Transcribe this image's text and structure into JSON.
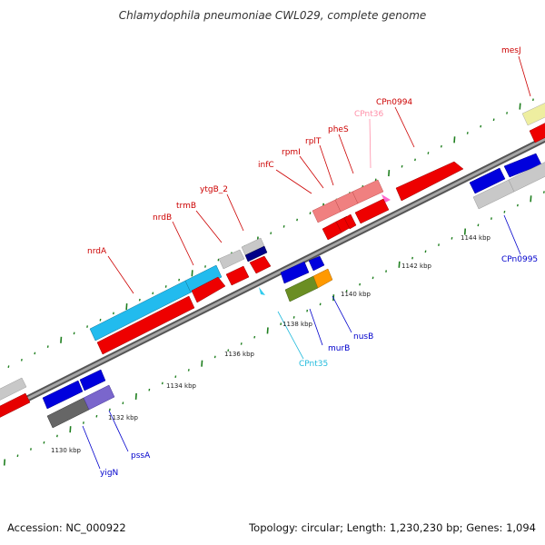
{
  "title": "Chlamydophila pneumoniae CWL029, complete genome",
  "footer": {
    "accession": "Accession: NC_000922",
    "summary": "Topology: circular; Length: 1,230,230 bp; Genes: 1,094"
  },
  "colors": {
    "backbone": "#7f7f7f",
    "forward_strand": "#ff0000",
    "reverse_strand": "#0000ee",
    "rna": "#ff8c8c",
    "ticks": "#1f7f1f"
  },
  "scale_labels": [
    "1130 kbp",
    "1132 kbp",
    "1134 kbp",
    "1136 kbp",
    "1138 kbp",
    "1140 kbp",
    "1142 kbp",
    "1144 kbp"
  ],
  "gene_labels": [
    {
      "text": "mesJ",
      "color": "#cc0000"
    },
    {
      "text": "CPn0994",
      "color": "#cc0000"
    },
    {
      "text": "CPnt36",
      "color": "#ff8fa8"
    },
    {
      "text": "pheS",
      "color": "#cc0000"
    },
    {
      "text": "rplT",
      "color": "#cc0000"
    },
    {
      "text": "rpmI",
      "color": "#cc0000"
    },
    {
      "text": "infC",
      "color": "#cc0000"
    },
    {
      "text": "ytgB_2",
      "color": "#cc0000"
    },
    {
      "text": "trmB",
      "color": "#cc0000"
    },
    {
      "text": "nrdB",
      "color": "#cc0000"
    },
    {
      "text": "nrdA",
      "color": "#cc0000"
    },
    {
      "text": "CPn0995",
      "color": "#0000cc"
    },
    {
      "text": "nusB",
      "color": "#0000cc"
    },
    {
      "text": "murB",
      "color": "#0000cc"
    },
    {
      "text": "CPnt35",
      "color": "#22bbdd"
    },
    {
      "text": "pssA",
      "color": "#0000cc"
    },
    {
      "text": "yigN",
      "color": "#0000cc"
    }
  ]
}
